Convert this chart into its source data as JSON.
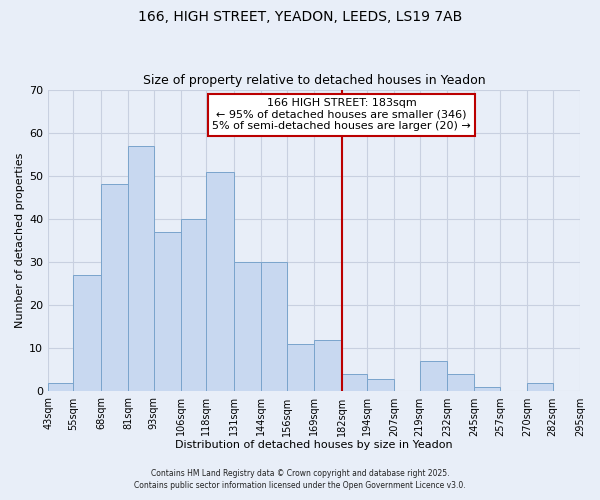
{
  "title": "166, HIGH STREET, YEADON, LEEDS, LS19 7AB",
  "subtitle": "Size of property relative to detached houses in Yeadon",
  "xlabel": "Distribution of detached houses by size in Yeadon",
  "ylabel": "Number of detached properties",
  "bins": [
    43,
    55,
    68,
    81,
    93,
    106,
    118,
    131,
    144,
    156,
    169,
    182,
    194,
    207,
    219,
    232,
    245,
    257,
    270,
    282,
    295
  ],
  "counts": [
    2,
    27,
    48,
    57,
    37,
    40,
    51,
    30,
    30,
    11,
    12,
    4,
    3,
    0,
    7,
    4,
    1,
    0,
    2,
    0
  ],
  "bar_color": "#c8d8f0",
  "bar_edge_color": "#7aa4cc",
  "grid_color": "#c8d0e0",
  "vline_x": 182,
  "vline_color": "#bb0000",
  "annotation_line1": "166 HIGH STREET: 183sqm",
  "annotation_line2": "← 95% of detached houses are smaller (346)",
  "annotation_line3": "5% of semi-detached houses are larger (20) →",
  "annotation_box_color": "#ffffff",
  "annotation_box_edge": "#bb0000",
  "ylim": [
    0,
    70
  ],
  "yticks": [
    0,
    10,
    20,
    30,
    40,
    50,
    60,
    70
  ],
  "tick_labels": [
    "43sqm",
    "55sqm",
    "68sqm",
    "81sqm",
    "93sqm",
    "106sqm",
    "118sqm",
    "131sqm",
    "144sqm",
    "156sqm",
    "169sqm",
    "182sqm",
    "194sqm",
    "207sqm",
    "219sqm",
    "232sqm",
    "245sqm",
    "257sqm",
    "270sqm",
    "282sqm",
    "295sqm"
  ],
  "footnote1": "Contains HM Land Registry data © Crown copyright and database right 2025.",
  "footnote2": "Contains public sector information licensed under the Open Government Licence v3.0.",
  "bg_color": "#e8eef8",
  "title_fontsize": 10,
  "subtitle_fontsize": 9,
  "label_fontsize": 8,
  "tick_fontsize": 7,
  "annot_fontsize": 8
}
